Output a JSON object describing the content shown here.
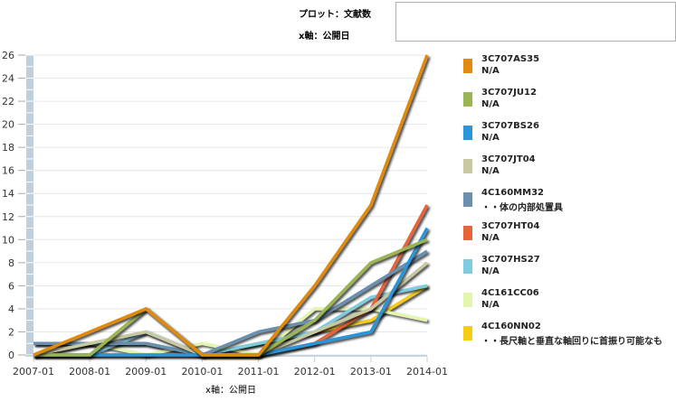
{
  "header": {
    "plot_label": "プロット：文献数",
    "xaxis_label": "x軸：公開日",
    "search_box_value": ""
  },
  "chart_data": {
    "type": "line",
    "title": "",
    "xlabel": "x軸：公開日",
    "ylabel": "",
    "x": [
      "2007-01",
      "2008-01",
      "2009-01",
      "2010-01",
      "2011-01",
      "2012-01",
      "2013-01",
      "2014-01"
    ],
    "ylim": [
      0,
      26
    ],
    "yticks": [
      0,
      2,
      4,
      6,
      8,
      10,
      12,
      14,
      16,
      18,
      20,
      22,
      24,
      26
    ],
    "grid": true,
    "legend_position": "right",
    "series": [
      {
        "name": "3C707AS35",
        "desc": "N/A",
        "color": "#E08A10",
        "values": [
          0,
          2,
          4,
          0,
          0,
          6,
          13,
          26
        ]
      },
      {
        "name": "3C707JU12",
        "desc": "N/A",
        "color": "#9BB555",
        "values": [
          0,
          0,
          4,
          0,
          0,
          3,
          8,
          10
        ]
      },
      {
        "name": "3C707BS26",
        "desc": "N/A",
        "color": "#2A95D8",
        "values": [
          0,
          0,
          0,
          0,
          0,
          1,
          2,
          11
        ]
      },
      {
        "name": "3C707JT04",
        "desc": "N/A",
        "color": "#C8C9A3",
        "values": [
          0,
          1,
          2,
          0,
          0,
          2,
          4,
          8
        ]
      },
      {
        "name": "4C160MM32",
        "desc": "・・体の内部処置具",
        "color": "#6A90B0",
        "values": [
          1,
          1,
          1,
          0,
          2,
          3,
          6,
          9
        ]
      },
      {
        "name": "3C707HT04",
        "desc": "N/A",
        "color": "#E8623A",
        "values": [
          0,
          0,
          0,
          0,
          0,
          1,
          4,
          13
        ]
      },
      {
        "name": "3C707HS27",
        "desc": "N/A",
        "color": "#7FCCE0",
        "values": [
          0,
          0,
          2,
          0,
          1,
          2,
          5,
          6
        ]
      },
      {
        "name": "4C161CC06",
        "desc": "N/A",
        "color": "#E4F5B0",
        "values": [
          1,
          1,
          0,
          1,
          0,
          4,
          4,
          3
        ]
      },
      {
        "name": "4C160NN02",
        "desc": "・・長尺軸と垂直な軸回りに首振り可能なも",
        "color": "#F5CC1A",
        "values": [
          0,
          1,
          1,
          0,
          1,
          2,
          3,
          6
        ]
      }
    ]
  }
}
